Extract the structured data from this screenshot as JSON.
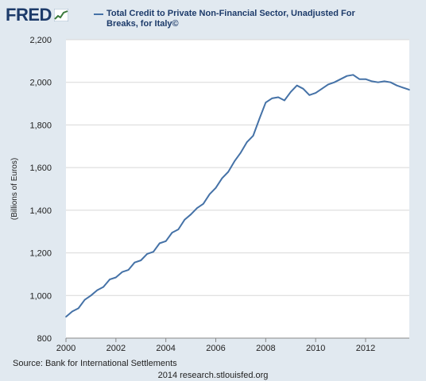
{
  "logo": {
    "text": "FRED"
  },
  "chart_data": {
    "type": "line",
    "title": "Total Credit to Private Non-Financial Sector, Unadjusted For Breaks, for Italy©",
    "ylabel": "(Billions of Euros)",
    "xlabel": "",
    "xlim": [
      2000,
      2013.75
    ],
    "ylim": [
      800,
      2200
    ],
    "yticks": [
      800,
      1000,
      1200,
      1400,
      1600,
      1800,
      2000,
      2200
    ],
    "yticklabels": [
      "800",
      "1,000",
      "1,200",
      "1,400",
      "1,600",
      "1,800",
      "2,000",
      "2,200"
    ],
    "xticks": [
      2000,
      2002,
      2004,
      2006,
      2008,
      2010,
      2012
    ],
    "xticklabels": [
      "2000",
      "2002",
      "2004",
      "2006",
      "2008",
      "2010",
      "2012"
    ],
    "grid": "horizontal",
    "legend_position": "top",
    "colors": {
      "line": "#4572a7",
      "plot_bg": "#ffffff",
      "grid": "#d8d8d8"
    },
    "series": [
      {
        "name": "Total Credit to Private Non-Financial Sector, Unadjusted For Breaks, for Italy©",
        "x": [
          2000.0,
          2000.25,
          2000.5,
          2000.75,
          2001.0,
          2001.25,
          2001.5,
          2001.75,
          2002.0,
          2002.25,
          2002.5,
          2002.75,
          2003.0,
          2003.25,
          2003.5,
          2003.75,
          2004.0,
          2004.25,
          2004.5,
          2004.75,
          2005.0,
          2005.25,
          2005.5,
          2005.75,
          2006.0,
          2006.25,
          2006.5,
          2006.75,
          2007.0,
          2007.25,
          2007.5,
          2007.75,
          2008.0,
          2008.25,
          2008.5,
          2008.75,
          2009.0,
          2009.25,
          2009.5,
          2009.75,
          2010.0,
          2010.25,
          2010.5,
          2010.75,
          2011.0,
          2011.25,
          2011.5,
          2011.75,
          2012.0,
          2012.25,
          2012.5,
          2012.75,
          2013.0,
          2013.25,
          2013.5,
          2013.75
        ],
        "values": [
          900,
          925,
          940,
          980,
          1000,
          1025,
          1040,
          1075,
          1085,
          1110,
          1120,
          1155,
          1165,
          1195,
          1205,
          1245,
          1255,
          1295,
          1310,
          1355,
          1380,
          1410,
          1430,
          1475,
          1505,
          1550,
          1580,
          1630,
          1670,
          1720,
          1750,
          1830,
          1905,
          1925,
          1930,
          1915,
          1955,
          1985,
          1970,
          1940,
          1950,
          1970,
          1990,
          2000,
          2015,
          2030,
          2035,
          2015,
          2015,
          2005,
          2000,
          2005,
          2000,
          1985,
          1975,
          1965
        ]
      }
    ]
  },
  "source": "Source: Bank for International Settlements",
  "footer": "2014 research.stlouisfed.org"
}
